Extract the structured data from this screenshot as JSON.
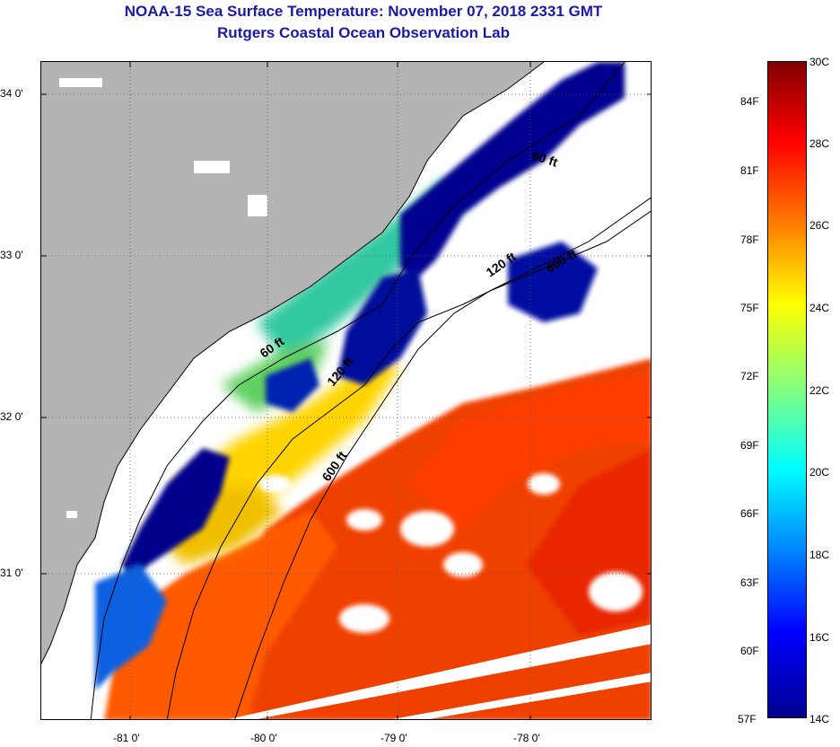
{
  "header": {
    "title": "NOAA-15 Sea Surface Temperature:  November 07, 2018 2331 GMT",
    "subtitle": "Rutgers Coastal Ocean Observation Lab"
  },
  "map": {
    "lat_labels": [
      "34 0'",
      "33 0'",
      "32 0'",
      "31 0'"
    ],
    "lon_labels": [
      "-81 0'",
      "-80 0'",
      "-79 0'",
      "-78 0'"
    ],
    "isobath_labels": [
      "60 ft",
      "120 ft",
      "600 ft",
      "60 ft",
      "120 ft",
      "600 ft"
    ],
    "colors": {
      "land": "#b4b4b4",
      "cloud": "#ffffff",
      "cold": "#00008f",
      "warm": "#e83000"
    }
  },
  "colorbar": {
    "fahrenheit_labels": [
      "84F",
      "81F",
      "78F",
      "75F",
      "72F",
      "69F",
      "66F",
      "63F",
      "60F",
      "57F"
    ],
    "celsius_labels": [
      "30C",
      "28C",
      "26C",
      "24C",
      "22C",
      "20C",
      "18C",
      "16C",
      "14C"
    ],
    "range_celsius": [
      14,
      30
    ],
    "colormap": "jet"
  }
}
